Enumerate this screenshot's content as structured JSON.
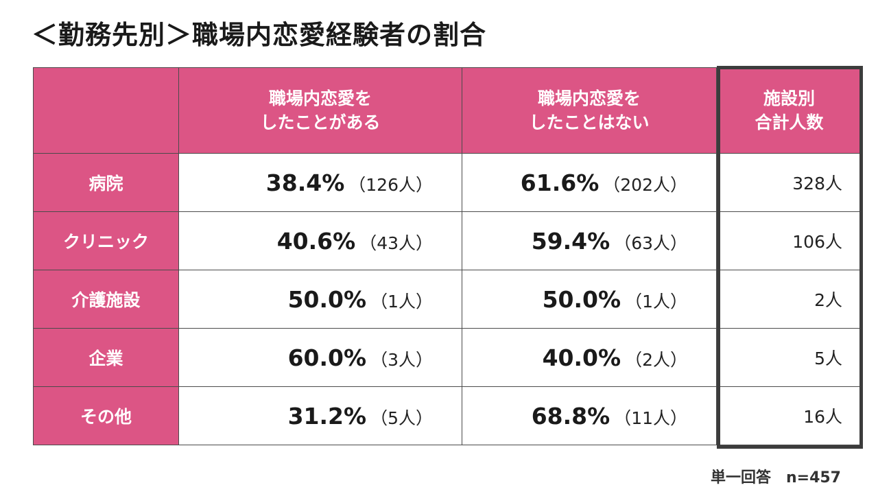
{
  "title": "＜勤務先別＞職場内恋愛経験者の割合",
  "table": {
    "headers": {
      "corner": "",
      "col1_line1": "職場内恋愛を",
      "col1_line2": "したことがある",
      "col2_line1": "職場内恋愛を",
      "col2_line2": "したことはない",
      "col3_line1": "施設別",
      "col3_line2": "合計人数"
    },
    "rows": [
      {
        "label": "病院",
        "yes_pct": "38.4%",
        "yes_count": "（126人）",
        "no_pct": "61.6%",
        "no_count": "（202人）",
        "total": "328人"
      },
      {
        "label": "クリニック",
        "yes_pct": "40.6%",
        "yes_count": "（43人）",
        "no_pct": "59.4%",
        "no_count": "（63人）",
        "total": "106人"
      },
      {
        "label": "介護施設",
        "yes_pct": "50.0%",
        "yes_count": "（1人）",
        "no_pct": "50.0%",
        "no_count": "（1人）",
        "total": "2人"
      },
      {
        "label": "企業",
        "yes_pct": "60.0%",
        "yes_count": "（3人）",
        "no_pct": "40.0%",
        "no_count": "（2人）",
        "total": "5人"
      },
      {
        "label": "その他",
        "yes_pct": "31.2%",
        "yes_count": "（5人）",
        "no_pct": "68.8%",
        "no_count": "（11人）",
        "total": "16人"
      }
    ]
  },
  "footnote": "単一回答　n=457",
  "colors": {
    "header_bg": "#dc5585",
    "header_text": "#ffffff",
    "highlight_border": "#3c3c3c"
  }
}
